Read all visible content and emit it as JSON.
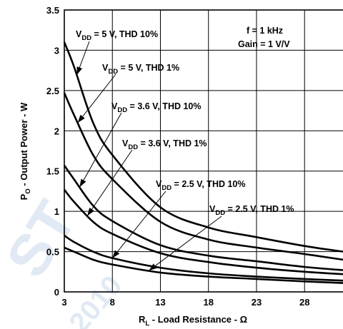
{
  "chart_data": {
    "type": "line",
    "xlabel_main": "R",
    "xlabel_sub": "L",
    "xlabel_rest": " - Load Resistance - Ω",
    "ylabel_main": "P",
    "ylabel_sub": "O",
    "ylabel_rest": " - Output Power - W",
    "xlim": [
      3,
      32
    ],
    "ylim": [
      0,
      3.5
    ],
    "x_ticks": [
      3,
      8,
      13,
      18,
      23,
      28
    ],
    "y_ticks": [
      0,
      0.5,
      1,
      1.5,
      2,
      2.5,
      3,
      3.5
    ],
    "x_tick_labels": [
      "3",
      "8",
      "13",
      "18",
      "23",
      "28"
    ],
    "y_tick_labels": [
      "0",
      "0.5",
      "1",
      "1.5",
      "2",
      "2.5",
      "3",
      "3.5"
    ],
    "grid": true,
    "annotations": [
      {
        "text": "f = 1 kHz"
      },
      {
        "text": "Gain = 1 V/V"
      }
    ],
    "series": [
      {
        "name_pre": "V",
        "name_sub": "DD",
        "name_post": " = 5 V, THD 10%",
        "x": [
          3,
          4,
          6,
          8,
          13,
          18,
          23,
          28,
          32
        ],
        "y": [
          3.1,
          2.8,
          2.1,
          1.7,
          1.05,
          0.8,
          0.68,
          0.57,
          0.5
        ]
      },
      {
        "name_pre": "V",
        "name_sub": "DD",
        "name_post": " = 5 V, THD 1%",
        "x": [
          3,
          4,
          6,
          8,
          13,
          18,
          23,
          28,
          32
        ],
        "y": [
          2.47,
          2.2,
          1.7,
          1.4,
          0.87,
          0.65,
          0.55,
          0.47,
          0.4
        ]
      },
      {
        "name_pre": "V",
        "name_sub": "DD",
        "name_post": " = 3.6 V, THD 10%",
        "x": [
          3,
          4,
          6,
          8,
          13,
          18,
          23,
          28,
          32
        ],
        "y": [
          1.57,
          1.4,
          1.07,
          0.88,
          0.58,
          0.45,
          0.38,
          0.31,
          0.27
        ]
      },
      {
        "name_pre": "V",
        "name_sub": "DD",
        "name_post": " = 3.6 V, THD 1%",
        "x": [
          3,
          4,
          6,
          8,
          13,
          18,
          23,
          28,
          32
        ],
        "y": [
          1.27,
          1.12,
          0.87,
          0.72,
          0.48,
          0.37,
          0.3,
          0.25,
          0.22
        ]
      },
      {
        "name_pre": "V",
        "name_sub": "DD",
        "name_post": " = 2.5 V, THD 10%",
        "x": [
          3,
          4,
          6,
          8,
          13,
          18,
          23,
          28,
          32
        ],
        "y": [
          0.7,
          0.62,
          0.5,
          0.42,
          0.3,
          0.23,
          0.19,
          0.16,
          0.14
        ]
      },
      {
        "name_pre": "V",
        "name_sub": "DD",
        "name_post": " = 2.5 V, THD 1%",
        "x": [
          3,
          4,
          6,
          8,
          13,
          18,
          23,
          28,
          32
        ],
        "y": [
          0.55,
          0.5,
          0.4,
          0.34,
          0.24,
          0.19,
          0.16,
          0.13,
          0.11
        ]
      }
    ],
    "watermark_text": [
      "ST",
      "2010"
    ],
    "watermark_color": "#c9d8ec"
  }
}
